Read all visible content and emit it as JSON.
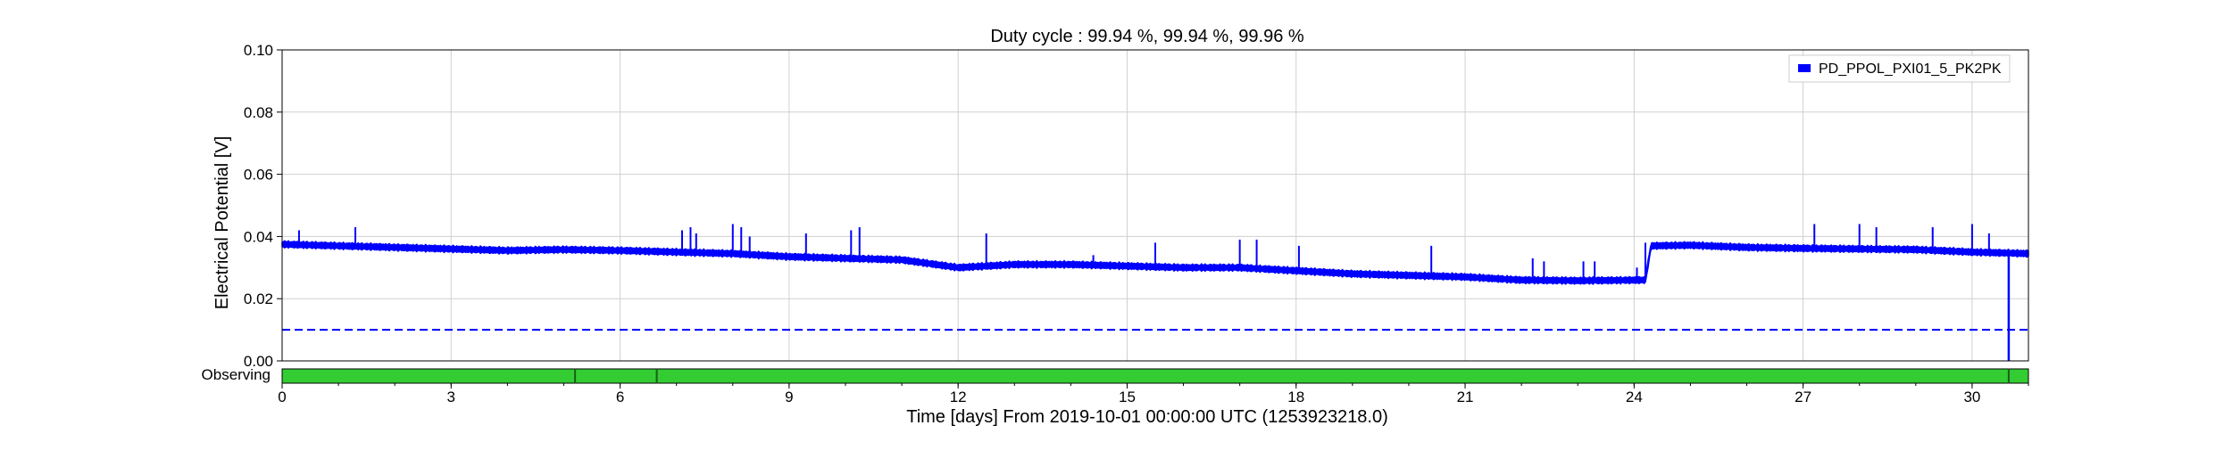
{
  "chart_data": {
    "type": "line",
    "title": "Duty cycle : 99.94 %, 99.94 %, 99.96 %",
    "xlabel": "Time [days] From 2019-10-01 00:00:00 UTC (1253923218.0)",
    "ylabel": "Electrical Potential [V]",
    "xlim": [
      0,
      31
    ],
    "ylim": [
      0,
      0.1
    ],
    "x_ticks": [
      0,
      3,
      6,
      9,
      12,
      15,
      18,
      21,
      24,
      27,
      30
    ],
    "x_tick_labels": [
      "0",
      "3",
      "6",
      "9",
      "12",
      "15",
      "18",
      "21",
      "24",
      "27",
      "30"
    ],
    "y_ticks": [
      0,
      0.02,
      0.04,
      0.06,
      0.08,
      0.1
    ],
    "y_tick_labels": [
      "0.00",
      "0.02",
      "0.04",
      "0.06",
      "0.08",
      "0.10"
    ],
    "grid": true,
    "legend_position": "top-right",
    "series_color": "#0000ff",
    "series": [
      {
        "name": "PD_PPOL_PXI01_5_PK2PK",
        "baseline": [
          [
            0,
            0.0375
          ],
          [
            1,
            0.037
          ],
          [
            2,
            0.0365
          ],
          [
            3,
            0.036
          ],
          [
            4,
            0.0355
          ],
          [
            5,
            0.0358
          ],
          [
            6,
            0.0355
          ],
          [
            7,
            0.035
          ],
          [
            8,
            0.0345
          ],
          [
            9,
            0.0335
          ],
          [
            10,
            0.033
          ],
          [
            11,
            0.0325
          ],
          [
            12,
            0.03
          ],
          [
            13,
            0.031
          ],
          [
            14,
            0.031
          ],
          [
            15,
            0.0305
          ],
          [
            16,
            0.03
          ],
          [
            17,
            0.03
          ],
          [
            18,
            0.029
          ],
          [
            19,
            0.028
          ],
          [
            20,
            0.0275
          ],
          [
            21,
            0.027
          ],
          [
            22,
            0.026
          ],
          [
            23,
            0.0258
          ],
          [
            24.2,
            0.026
          ],
          [
            24.3,
            0.037
          ],
          [
            25,
            0.0372
          ],
          [
            26,
            0.0365
          ],
          [
            27,
            0.0362
          ],
          [
            28,
            0.036
          ],
          [
            29,
            0.0358
          ],
          [
            30,
            0.035
          ],
          [
            31,
            0.0345
          ]
        ],
        "spikes": [
          [
            0.3,
            0.042
          ],
          [
            1.3,
            0.043
          ],
          [
            7.1,
            0.042
          ],
          [
            7.25,
            0.043
          ],
          [
            7.35,
            0.041
          ],
          [
            8.0,
            0.044
          ],
          [
            8.15,
            0.043
          ],
          [
            8.3,
            0.04
          ],
          [
            9.3,
            0.041
          ],
          [
            10.1,
            0.042
          ],
          [
            10.25,
            0.043
          ],
          [
            12.5,
            0.041
          ],
          [
            14.4,
            0.034
          ],
          [
            15.5,
            0.038
          ],
          [
            17.0,
            0.039
          ],
          [
            17.3,
            0.039
          ],
          [
            18.05,
            0.037
          ],
          [
            20.4,
            0.037
          ],
          [
            22.2,
            0.033
          ],
          [
            22.4,
            0.032
          ],
          [
            23.1,
            0.032
          ],
          [
            23.3,
            0.032
          ],
          [
            24.05,
            0.03
          ],
          [
            24.2,
            0.038
          ],
          [
            27.2,
            0.044
          ],
          [
            28.0,
            0.044
          ],
          [
            28.3,
            0.043
          ],
          [
            29.3,
            0.043
          ],
          [
            30.0,
            0.044
          ],
          [
            30.3,
            0.041
          ]
        ],
        "dropout": {
          "x": 30.65,
          "y": 0.0
        }
      }
    ],
    "threshold_line": {
      "y": 0.01,
      "style": "dashed"
    },
    "state_bar": {
      "label": "Observing",
      "color": "#33cc33",
      "gaps": [
        5.2,
        6.65,
        30.65
      ]
    }
  }
}
